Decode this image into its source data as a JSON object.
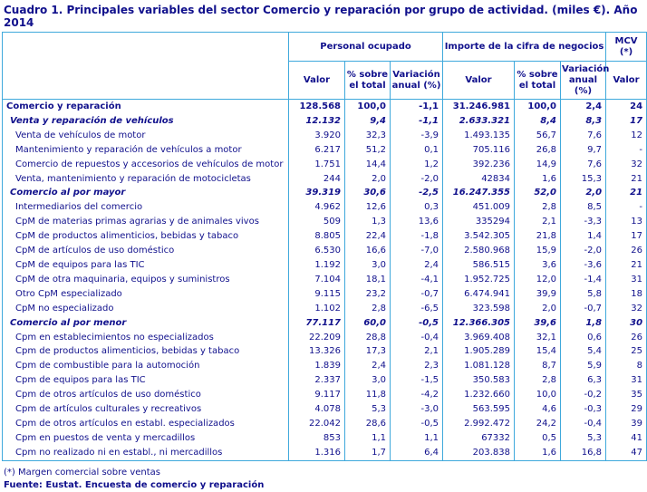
{
  "title": "Cuadro 1. Principales variables del sector Comercio y reparación por grupo de actividad.  (miles €). Año 2014",
  "colors": {
    "border": "#3FA9DC",
    "text": "#10108C",
    "background": "#FFFFFF"
  },
  "table": {
    "header": {
      "group_personal": "Personal ocupado",
      "group_importe": "Importe de la cifra de negocios",
      "group_mcv": "MCV (*)",
      "sub": {
        "valor": "Valor",
        "pct": "% sobre el total",
        "variacion": "Variación anual (%)"
      }
    },
    "rows": [
      {
        "label": "Comercio y reparación",
        "style": "total",
        "values": [
          "128.568",
          "100,0",
          "-1,1",
          "31.246.981",
          "100,0",
          "2,4",
          "24"
        ]
      },
      {
        "label": "Venta y reparación de vehículos",
        "style": "group",
        "values": [
          "12.132",
          "9,4",
          "-1,1",
          "2.633.321",
          "8,4",
          "8,3",
          "17"
        ]
      },
      {
        "label": "Venta de vehículos de motor",
        "style": "item",
        "values": [
          "3.920",
          "32,3",
          "-3,9",
          "1.493.135",
          "56,7",
          "7,6",
          "12"
        ]
      },
      {
        "label": "Mantenimiento y reparación de vehículos a motor",
        "style": "item",
        "values": [
          "6.217",
          "51,2",
          "0,1",
          "705.116",
          "26,8",
          "9,7",
          "-"
        ]
      },
      {
        "label": "Comercio de repuestos y accesorios de vehículos de motor",
        "style": "item",
        "values": [
          "1.751",
          "14,4",
          "1,2",
          "392.236",
          "14,9",
          "7,6",
          "32"
        ]
      },
      {
        "label": "Venta, mantenimiento y reparación de motocicletas",
        "style": "item",
        "values": [
          "244",
          "2,0",
          "-2,0",
          "42834",
          "1,6",
          "15,3",
          "21"
        ]
      },
      {
        "label": "Comercio al por mayor",
        "style": "group",
        "values": [
          "39.319",
          "30,6",
          "-2,5",
          "16.247.355",
          "52,0",
          "2,0",
          "21"
        ]
      },
      {
        "label": "Intermediarios del comercio",
        "style": "item",
        "values": [
          "4.962",
          "12,6",
          "0,3",
          "451.009",
          "2,8",
          "8,5",
          "-"
        ]
      },
      {
        "label": "CpM de materias primas agrarias y de animales vivos",
        "style": "item",
        "values": [
          "509",
          "1,3",
          "13,6",
          "335294",
          "2,1",
          "-3,3",
          "13"
        ]
      },
      {
        "label": "CpM de productos alimenticios, bebidas y tabaco",
        "style": "item",
        "values": [
          "8.805",
          "22,4",
          "-1,8",
          "3.542.305",
          "21,8",
          "1,4",
          "17"
        ]
      },
      {
        "label": "CpM de artículos de uso doméstico",
        "style": "item",
        "values": [
          "6.530",
          "16,6",
          "-7,0",
          "2.580.968",
          "15,9",
          "-2,0",
          "26"
        ]
      },
      {
        "label": "CpM de equipos para las TIC",
        "style": "item",
        "values": [
          "1.192",
          "3,0",
          "2,4",
          "586.515",
          "3,6",
          "-3,6",
          "21"
        ]
      },
      {
        "label": "CpM de otra maquinaria, equipos y suministros",
        "style": "item",
        "values": [
          "7.104",
          "18,1",
          "-4,1",
          "1.952.725",
          "12,0",
          "-1,4",
          "31"
        ]
      },
      {
        "label": "Otro CpM especializado",
        "style": "item",
        "values": [
          "9.115",
          "23,2",
          "-0,7",
          "6.474.941",
          "39,9",
          "5,8",
          "18"
        ]
      },
      {
        "label": "CpM no especializado",
        "style": "item",
        "values": [
          "1.102",
          "2,8",
          "-6,5",
          "323.598",
          "2,0",
          "-0,7",
          "32"
        ]
      },
      {
        "label": "Comercio al por menor",
        "style": "group",
        "values": [
          "77.117",
          "60,0",
          "-0,5",
          "12.366.305",
          "39,6",
          "1,8",
          "30"
        ]
      },
      {
        "label": "Cpm en establecimientos no especializados",
        "style": "item",
        "values": [
          "22.209",
          "28,8",
          "-0,4",
          "3.969.408",
          "32,1",
          "0,6",
          "26"
        ]
      },
      {
        "label": "Cpm de productos alimenticios, bebidas y tabaco",
        "style": "item",
        "values": [
          "13.326",
          "17,3",
          "2,1",
          "1.905.289",
          "15,4",
          "5,4",
          "25"
        ]
      },
      {
        "label": "Cpm de combustible para la automoción",
        "style": "item",
        "values": [
          "1.839",
          "2,4",
          "2,3",
          "1.081.128",
          "8,7",
          "5,9",
          "8"
        ]
      },
      {
        "label": "Cpm de equipos para las TIC",
        "style": "item",
        "values": [
          "2.337",
          "3,0",
          "-1,5",
          "350.583",
          "2,8",
          "6,3",
          "31"
        ]
      },
      {
        "label": "Cpm de otros artículos de uso doméstico",
        "style": "item",
        "values": [
          "9.117",
          "11,8",
          "-4,2",
          "1.232.660",
          "10,0",
          "-0,2",
          "35"
        ]
      },
      {
        "label": "Cpm de artículos culturales y recreativos",
        "style": "item",
        "values": [
          "4.078",
          "5,3",
          "-3,0",
          "563.595",
          "4,6",
          "-0,3",
          "29"
        ]
      },
      {
        "label": "Cpm de otros artículos en establ. especializados",
        "style": "item",
        "values": [
          "22.042",
          "28,6",
          "-0,5",
          "2.992.472",
          "24,2",
          "-0,4",
          "39"
        ]
      },
      {
        "label": "Cpm en puestos de venta y mercadillos",
        "style": "item",
        "values": [
          "853",
          "1,1",
          "1,1",
          "67332",
          "0,5",
          "5,3",
          "41"
        ]
      },
      {
        "label": "Cpm no realizado ni en establ., ni mercadillos",
        "style": "item",
        "values": [
          "1.316",
          "1,7",
          "6,4",
          "203.838",
          "1,6",
          "16,8",
          "47"
        ]
      }
    ]
  },
  "footnotes": [
    "(*) Margen comercial sobre ventas",
    "Fuente: Eustat. Encuesta de comercio y reparación"
  ]
}
